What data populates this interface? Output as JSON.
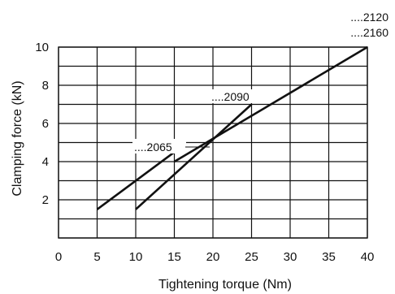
{
  "chart_data": {
    "type": "line",
    "xlabel": "Tightening torque (Nm)",
    "ylabel": "Clamping force (kN)",
    "xlim": [
      0,
      40
    ],
    "ylim": [
      0,
      10
    ],
    "x_ticks": [
      0,
      5,
      10,
      15,
      20,
      25,
      30,
      35,
      40
    ],
    "y_ticks": [
      2,
      4,
      6,
      8,
      10
    ],
    "x_grid_step": 5,
    "y_grid_step": 1,
    "grid": true,
    "series": [
      {
        "name": "....2065",
        "points": [
          [
            5,
            1.5
          ],
          [
            15,
            4.5
          ]
        ]
      },
      {
        "name": "....2090",
        "points": [
          [
            10,
            1.5
          ],
          [
            25,
            7
          ]
        ]
      },
      {
        "name": "....2120",
        "points": [
          [
            15,
            4
          ],
          [
            40,
            10
          ]
        ]
      },
      {
        "name": "....2160",
        "points": [
          [
            15,
            4
          ],
          [
            40,
            10
          ]
        ]
      }
    ]
  }
}
